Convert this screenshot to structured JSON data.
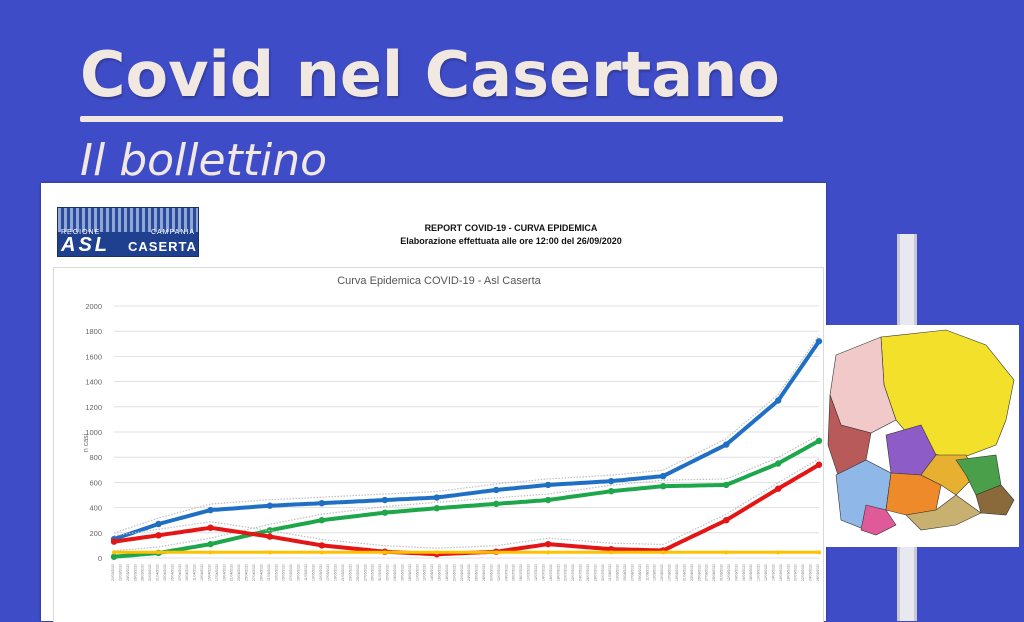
{
  "header": {
    "title": "Covid nel Casertano",
    "subtitle": "Il bollettino"
  },
  "logo": {
    "regione": "REGIONE",
    "campania": "CAMPANIA",
    "asl": "ASL",
    "caserta": "CASERTA"
  },
  "report": {
    "title": "REPORT COVID-19 - CURVA EPIDEMICA",
    "subtitle": "Elaborazione effettuata alle ore 12:00 del 26/09/2020"
  },
  "colors": {
    "background": "#3f4cc7",
    "blue": "#1f6fc4",
    "green": "#1ea64a",
    "red": "#e31515",
    "yellow": "#ffc000"
  },
  "chart_data": {
    "type": "line",
    "title": "Curva Epidemica COVID-19 - Asl Caserta",
    "ylabel": "n casi",
    "ylim": [
      0,
      2000
    ],
    "yticks": [
      "0",
      "200",
      "400",
      "600",
      "800",
      "1000",
      "1200",
      "1400",
      "1600",
      "1800",
      "2000"
    ],
    "grid": true,
    "x_start": "2020-03-20",
    "x_end": "2020-09-26",
    "x": [
      "2020-03-20",
      "2020-04-01",
      "2020-04-15",
      "2020-05-01",
      "2020-05-15",
      "2020-06-01",
      "2020-06-15",
      "2020-07-01",
      "2020-07-15",
      "2020-08-01",
      "2020-08-15",
      "2020-09-01",
      "2020-09-15",
      "2020-09-26"
    ],
    "series": [
      {
        "color": "#1f6fc4",
        "values": [
          150,
          270,
          380,
          415,
          435,
          460,
          480,
          540,
          580,
          610,
          650,
          900,
          1250,
          1720
        ]
      },
      {
        "color": "#1ea64a",
        "values": [
          10,
          40,
          110,
          220,
          300,
          360,
          395,
          430,
          460,
          530,
          570,
          580,
          750,
          930
        ]
      },
      {
        "color": "#e31515",
        "values": [
          130,
          180,
          240,
          170,
          100,
          50,
          30,
          50,
          110,
          70,
          60,
          300,
          550,
          740
        ]
      },
      {
        "color": "#ffc000",
        "values": [
          45,
          45,
          45,
          45,
          45,
          45,
          45,
          45,
          45,
          45,
          45,
          45,
          45,
          45
        ]
      }
    ]
  }
}
